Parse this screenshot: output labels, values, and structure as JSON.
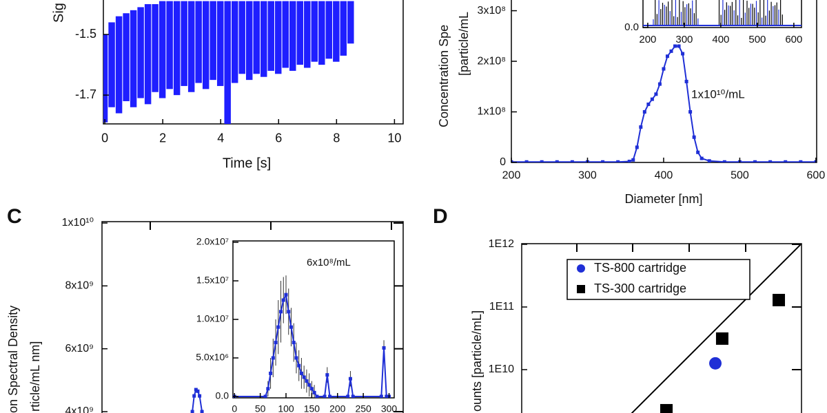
{
  "chart_data": [
    {
      "type": "line",
      "ylabel": [
        "Sig"
      ],
      "xlabel": "Time [s]",
      "color": "#1f1fff",
      "xlim": [
        -0.05,
        10.3
      ],
      "ylim": [
        -1.795,
        -1.375
      ],
      "xticks": [
        0,
        2,
        4,
        6,
        8,
        10
      ],
      "yticks": [
        -1.5,
        -1.7
      ],
      "x": [
        0,
        0.25,
        0.5,
        0.75,
        1,
        1.25,
        1.5,
        1.75,
        2,
        2.25,
        2.5,
        2.75,
        3,
        3.25,
        3.5,
        3.75,
        4,
        4.25,
        4.5,
        4.75,
        5,
        5.25,
        5.5,
        5.75,
        6,
        6.25,
        6.5,
        6.75,
        7,
        7.25,
        7.5,
        7.75,
        8,
        8.25,
        8.5
      ],
      "low": [
        -1.79,
        -1.74,
        -1.76,
        -1.72,
        -1.74,
        -1.71,
        -1.73,
        -1.69,
        -1.71,
        -1.68,
        -1.7,
        -1.67,
        -1.69,
        -1.66,
        -1.68,
        -1.65,
        -1.67,
        -1.8,
        -1.66,
        -1.63,
        -1.65,
        -1.63,
        -1.64,
        -1.62,
        -1.63,
        -1.61,
        -1.62,
        -1.6,
        -1.61,
        -1.59,
        -1.6,
        -1.58,
        -1.59,
        -1.57,
        -1.53
      ],
      "high": [
        -1.5,
        -1.46,
        -1.44,
        -1.43,
        -1.42,
        -1.41,
        -1.4,
        -1.4,
        -1.39,
        -1.39,
        -1.39,
        -1.39,
        -1.39,
        -1.39,
        -1.39,
        -1.39,
        -1.39,
        -1.39,
        -1.39,
        -1.39,
        -1.39,
        -1.39,
        -1.39,
        -1.39,
        -1.39,
        -1.39,
        -1.39,
        -1.39,
        -1.39,
        -1.39,
        -1.39,
        -1.39,
        -1.39,
        -1.39,
        -1.39
      ]
    },
    {
      "type": "line",
      "ylabel": [
        "Concentration Spe",
        "[particle/mL"
      ],
      "xlabel": "Diameter [nm]",
      "color": "#1f2fd6",
      "marker": "square",
      "annotations": [
        "1x10¹⁰/mL"
      ],
      "xlim": [
        200,
        601
      ],
      "ylim": [
        0,
        328000000
      ],
      "xticks": [
        200,
        300,
        400,
        500,
        600
      ],
      "yticks": [
        0,
        {
          "value": 100000000,
          "label": "1x10⁸"
        },
        {
          "value": 200000000,
          "label": "2x10⁸"
        },
        {
          "value": 300000000,
          "label": "3x10⁸"
        }
      ],
      "x": [
        200,
        220,
        240,
        260,
        280,
        300,
        320,
        340,
        355,
        360,
        365,
        370,
        375,
        380,
        385,
        390,
        395,
        400,
        405,
        410,
        415,
        420,
        425,
        430,
        435,
        440,
        445,
        450,
        460,
        480,
        500,
        520,
        540,
        560,
        580,
        600
      ],
      "values": [
        1000000.0,
        1000000.0,
        1000000.0,
        1000000.0,
        1000000.0,
        1000000.0,
        1000000.0,
        1000000.0,
        2000000.0,
        5000000.0,
        30000000.0,
        70000000.0,
        100000000.0,
        115000000.0,
        125000000.0,
        135000000.0,
        155000000.0,
        185000000.0,
        210000000.0,
        220000000.0,
        230000000.0,
        230000000.0,
        215000000.0,
        160000000.0,
        100000000.0,
        50000000.0,
        20000000.0,
        8000000.0,
        3000000.0,
        1000000.0,
        1000000.0,
        1000000.0,
        1000000.0,
        1000000.0,
        1000000.0,
        1000000.0
      ]
    },
    {
      "type": "inset",
      "xlim": [
        187,
        621
      ],
      "ylim": [
        0,
        1
      ],
      "xticks": [
        200,
        300,
        400,
        500,
        600
      ],
      "yticks": [
        {
          "value": 0,
          "label": "0.0"
        }
      ]
    },
    {
      "type": "line",
      "panel_label": "C",
      "ylabel": [
        "on Spectral Density",
        "rticle/mL nm]"
      ],
      "color": "#1f2fd6",
      "marker": "square",
      "xlim": [
        0,
        500
      ],
      "ylim": [
        3847000000,
        10044000000
      ],
      "yticks": [
        {
          "value": 4000000000,
          "label": "4x10⁹"
        },
        {
          "value": 6000000000,
          "label": "6x10⁹"
        },
        {
          "value": 8000000000,
          "label": "8x10⁹"
        },
        {
          "value": 10000000000,
          "label": "1x10¹⁰"
        }
      ],
      "x": [
        150,
        153,
        156,
        159,
        162,
        166
      ],
      "values": [
        4000000000.0,
        4500000000.0,
        4700000000.0,
        4650000000.0,
        4500000000.0,
        4000000000.0
      ]
    },
    {
      "type": "line",
      "color": "#1f2fd6",
      "marker": "square",
      "error_color": "#333333",
      "annotations": [
        "6x10⁸/mL"
      ],
      "xlim": [
        -3,
        310
      ],
      "ylim": [
        -180000,
        20180000
      ],
      "xticks": [
        0,
        50,
        100,
        150,
        200,
        250,
        300
      ],
      "yticks": [
        {
          "value": 0,
          "label": "0.0"
        },
        {
          "value": 5000000,
          "label": "5.0x10⁶"
        },
        {
          "value": 10000000,
          "label": "1.0x10⁷"
        },
        {
          "value": 15000000,
          "label": "1.5x10⁷"
        },
        {
          "value": 20000000,
          "label": "2.0x10⁷"
        }
      ],
      "x": [
        0,
        60,
        65,
        70,
        75,
        80,
        85,
        90,
        95,
        100,
        105,
        110,
        115,
        120,
        125,
        130,
        135,
        140,
        145,
        150,
        155,
        160,
        175,
        180,
        185,
        220,
        225,
        230,
        285,
        290,
        295,
        300
      ],
      "values": [
        0,
        0,
        1000000.0,
        3000000.0,
        5000000.0,
        7000000.0,
        9000000.0,
        11000000.0,
        12500000.0,
        13200000.0,
        11000000.0,
        9000000.0,
        7000000.0,
        5000000.0,
        4000000.0,
        3000000.0,
        2500000.0,
        2000000.0,
        1500000.0,
        1000000.0,
        500000.0,
        0,
        0,
        2800000.0,
        0,
        0,
        2300000.0,
        0,
        0,
        6300000.0,
        0,
        0
      ],
      "errors": [
        0,
        0,
        1000000.0,
        2000000.0,
        2500000.0,
        3000000.0,
        3500000.0,
        4000000.0,
        3000000.0,
        2500000.0,
        3000000.0,
        2500000.0,
        2500000.0,
        2000000.0,
        2000000.0,
        2000000.0,
        1500000.0,
        1500000.0,
        1500000.0,
        1000000.0,
        1000000.0,
        0,
        0,
        1000000.0,
        0,
        0,
        1000000.0,
        0,
        0,
        1000000.0,
        0,
        0
      ]
    },
    {
      "type": "scatter",
      "panel_label": "D",
      "ylabel": [
        "ounts [particle/mL]"
      ],
      "xlog": true,
      "ylog": true,
      "identity_line": true,
      "xlim": [
        35500000,
        1025000000000
      ],
      "ylim": [
        1790000000,
        1025000000000
      ],
      "yticks": [
        {
          "value": 10000000000,
          "label": "1E10"
        },
        {
          "value": 100000000000,
          "label": "1E11"
        },
        {
          "value": 1000000000000,
          "label": "1E12"
        }
      ],
      "series": [
        {
          "name": "TS-800 cartridge",
          "color": "#1f2fd6",
          "marker": "circle",
          "x": [
            43400000000
          ],
          "values": [
            12600000000
          ]
        },
        {
          "name": "TS-300 cartridge",
          "color": "#000000",
          "marker": "square",
          "x": [
            445000000000,
            55800000000,
            7200000000
          ],
          "values": [
            129000000000,
            31300000000,
            2250000000
          ]
        }
      ]
    }
  ]
}
